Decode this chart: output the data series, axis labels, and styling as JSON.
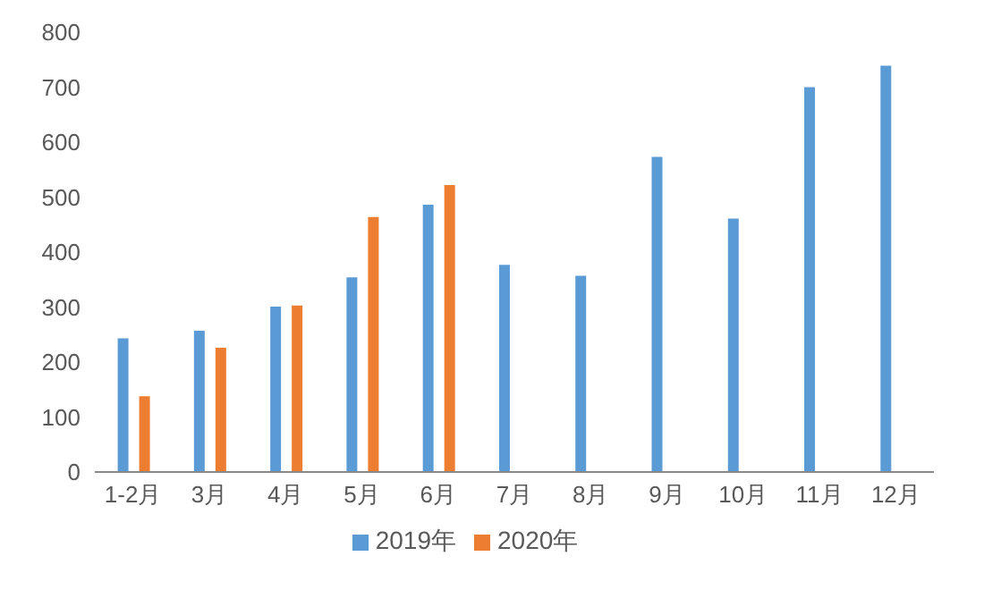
{
  "chart_data": {
    "type": "bar",
    "categories": [
      "1-2月",
      "3月",
      "4月",
      "5月",
      "6月",
      "7月",
      "8月",
      "9月",
      "10月",
      "11月",
      "12月"
    ],
    "series": [
      {
        "name": "2019年",
        "color": "#5b9bd5",
        "values": [
          243,
          257,
          301,
          354,
          486,
          377,
          357,
          573,
          461,
          700,
          739
        ]
      },
      {
        "name": "2020年",
        "color": "#ed7d31",
        "values": [
          138,
          226,
          303,
          464,
          522,
          null,
          null,
          null,
          null,
          null,
          null
        ]
      }
    ],
    "ylim": [
      0,
      800
    ],
    "yticks": [
      0,
      100,
      200,
      300,
      400,
      500,
      600,
      700,
      800
    ],
    "grid": false,
    "legend": "bottom"
  }
}
